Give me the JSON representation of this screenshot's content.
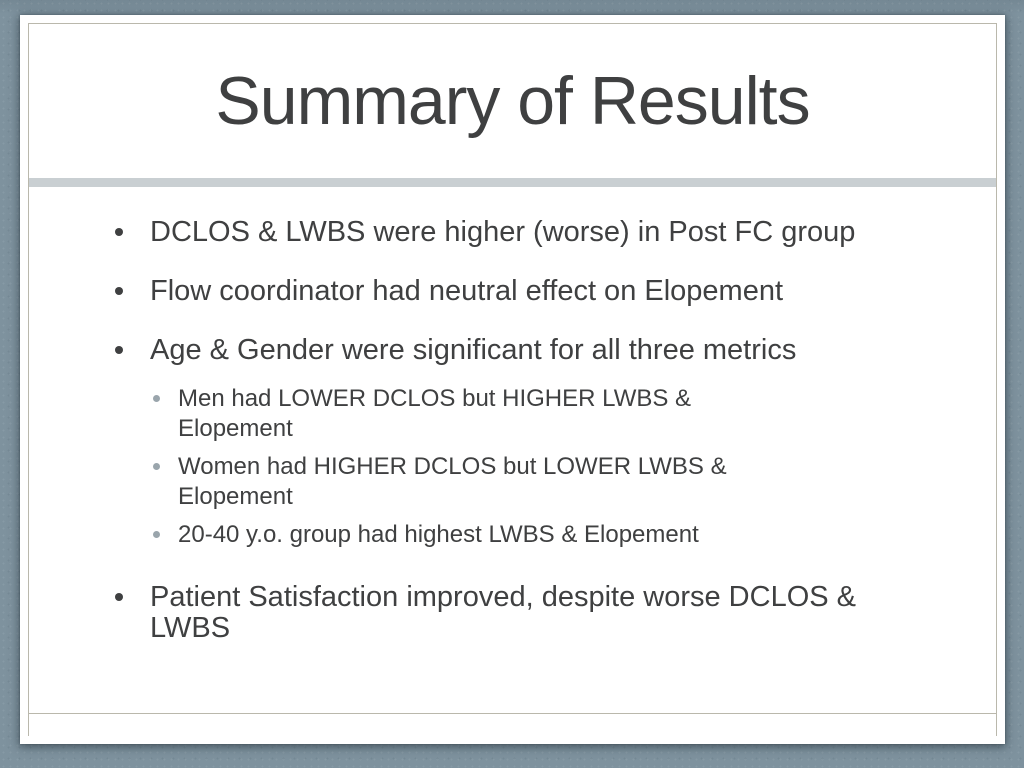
{
  "slide": {
    "title": "Summary of Results",
    "bullets": [
      {
        "level": 1,
        "lines": [
          "DCLOS & LWBS were higher (worse) in Post FC group"
        ]
      },
      {
        "level": 1,
        "lines": [
          "Flow coordinator had neutral effect on Elopement"
        ]
      },
      {
        "level": 1,
        "lines": [
          "Age & Gender were significant for all three metrics"
        ]
      },
      {
        "level": 2,
        "lines": [
          "Men had LOWER DCLOS but HIGHER LWBS &",
          "Elopement"
        ]
      },
      {
        "level": 2,
        "lines": [
          "Women had HIGHER DCLOS but LOWER LWBS &",
          "Elopement"
        ]
      },
      {
        "level": 2,
        "lines": [
          "20-40 y.o. group had highest LWBS & Elopement"
        ]
      },
      {
        "level": 1,
        "lines": [
          "Patient Satisfaction improved, despite worse DCLOS &",
          "LWBS"
        ]
      }
    ],
    "colors": {
      "background": "#7e929e",
      "card": "#ffffff",
      "text": "#3f4041",
      "frame_border": "#bab8ac",
      "divider_band": "#c9cfd2",
      "sub_bullet": "#9aa5ac"
    }
  }
}
